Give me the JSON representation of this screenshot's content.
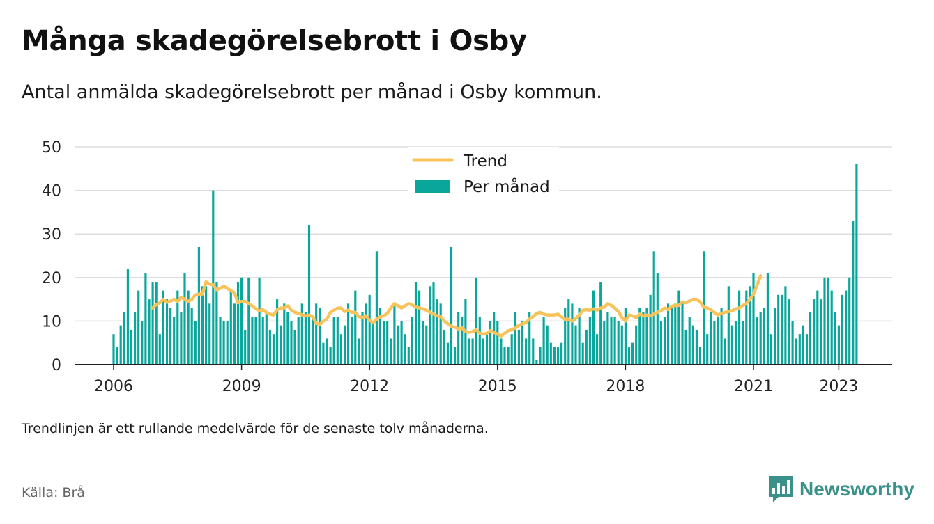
{
  "title": "Många skadegörelsebrott i Osby",
  "subtitle": "Antal anmälda skadegörelsebrott per månad i Osby kommun.",
  "note": "Trendlinjen är ett rullande medelvärde för de senaste tolv månaderna.",
  "source": "Källa: Brå",
  "brand": {
    "name": "Newsworthy",
    "icon": "bar-chart-logo-icon",
    "color": "#3a9189"
  },
  "chart_data": {
    "type": "bar",
    "title": "Många skadegörelsebrott i Osby",
    "subtitle": "Antal anmälda skadegörelsebrott per månad i Osby kommun.",
    "start": "2006-01",
    "ylim": [
      0,
      50
    ],
    "yticks": [
      0,
      10,
      20,
      30,
      40,
      50
    ],
    "xticks": [
      "2006",
      "2009",
      "2012",
      "2015",
      "2018",
      "2021",
      "2023"
    ],
    "grid": true,
    "legend_position": "top-center",
    "colors": {
      "bars": "#0ba69b",
      "trend": "#f7c35a"
    },
    "series": [
      {
        "name": "Per månad",
        "type": "bar",
        "values": [
          7,
          4,
          9,
          12,
          22,
          8,
          12,
          17,
          10,
          21,
          15,
          19,
          19,
          7,
          17,
          15,
          13,
          11,
          17,
          12,
          21,
          17,
          13,
          10,
          27,
          18,
          18,
          14,
          40,
          19,
          11,
          10,
          10,
          17,
          14,
          19,
          20,
          8,
          20,
          11,
          11,
          20,
          11,
          12,
          8,
          7,
          15,
          9,
          14,
          12,
          10,
          8,
          11,
          14,
          12,
          32,
          11,
          14,
          13,
          5,
          6,
          4,
          11,
          11,
          7,
          9,
          14,
          11,
          17,
          6,
          12,
          14,
          16,
          10,
          26,
          13,
          10,
          10,
          6,
          14,
          9,
          10,
          7,
          4,
          11,
          19,
          17,
          10,
          9,
          18,
          19,
          15,
          14,
          8,
          5,
          27,
          4,
          12,
          11,
          15,
          6,
          6,
          20,
          11,
          6,
          7,
          10,
          12,
          10,
          6,
          4,
          4,
          7,
          12,
          8,
          10,
          6,
          12,
          6,
          1,
          4,
          11,
          9,
          5,
          4,
          4,
          5,
          13,
          15,
          14,
          9,
          13,
          5,
          8,
          11,
          17,
          7,
          19,
          10,
          12,
          11,
          11,
          10,
          9,
          13,
          4,
          5,
          9,
          13,
          12,
          13,
          16,
          26,
          21,
          10,
          11,
          14,
          13,
          14,
          17,
          14,
          8,
          11,
          9,
          8,
          4,
          26,
          7,
          12,
          10,
          11,
          13,
          6,
          18,
          9,
          10,
          17,
          10,
          17,
          18,
          21,
          11,
          12,
          13,
          21,
          7,
          13,
          16,
          16,
          18,
          15,
          10,
          6,
          7,
          9,
          7,
          12,
          15,
          17,
          15,
          20,
          20,
          17,
          12,
          9,
          16,
          17,
          20,
          33,
          46
        ]
      },
      {
        "name": "Trend",
        "type": "line",
        "start": "2006-12",
        "values": [
          13,
          13.8,
          14.2,
          15,
          14.3,
          14.6,
          15,
          14.5,
          15.5,
          15,
          14.5,
          15,
          16,
          16.2,
          16.2,
          19,
          18.5,
          18.3,
          17.2,
          17.5,
          18,
          17.5,
          17,
          16.5,
          14.2,
          14.5,
          14.5,
          14,
          13.5,
          12.8,
          12.4,
          12.6,
          12,
          11.6,
          11.4,
          12.6,
          13,
          13,
          13.5,
          12.5,
          12,
          11.8,
          11.4,
          11.2,
          11.4,
          11,
          9.5,
          9.2,
          10,
          10.5,
          12,
          12.5,
          13,
          13,
          12.2,
          12.5,
          12,
          12,
          11,
          10.8,
          11.2,
          10.2,
          9.6,
          10.4,
          11,
          11.2,
          11.8,
          13,
          14,
          13.5,
          13,
          13.5,
          14,
          13.7,
          13.2,
          13,
          12.8,
          12.5,
          12,
          11.6,
          11.2,
          11,
          10,
          9.4,
          8.8,
          8.6,
          8.2,
          8.4,
          7.6,
          7.4,
          7.6,
          8,
          7.2,
          7,
          7.2,
          7.8,
          7.4,
          7,
          6.6,
          7.2,
          7.8,
          8,
          8.4,
          9,
          9.4,
          9.6,
          10.5,
          11,
          11.8,
          12,
          11.6,
          11.4,
          11.4,
          11.4,
          11.6,
          11,
          10.4,
          10.4,
          10,
          10.6,
          11.4,
          12.5,
          12.6,
          12.5,
          12.8,
          12.5,
          13,
          13.2,
          14,
          13.6,
          13,
          12.2,
          10.8,
          10,
          11.4,
          11.2,
          10.8,
          11.6,
          11.2,
          11.4,
          11.2,
          11.6,
          12,
          12.4,
          13,
          12.6,
          13.4,
          13.6,
          13.6,
          14.4,
          14.2,
          14.6,
          15,
          15,
          14.4,
          13.2,
          13,
          12.6,
          12,
          11.4,
          11.8,
          12,
          12.2,
          12.4,
          12.8,
          13,
          13.6,
          14,
          15,
          16.2,
          18.2,
          20.4
        ]
      }
    ]
  }
}
